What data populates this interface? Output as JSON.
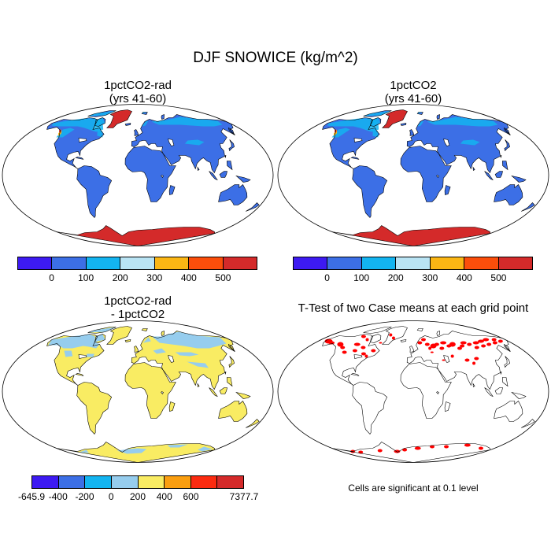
{
  "figure": {
    "title": "DJF SNOWICE (kg/m^2)",
    "note": "Cells are significant at 0.1 level"
  },
  "panels": [
    {
      "id": "1pctCO2-rad",
      "title": "1pctCO2-rad\n(yrs 41-60)",
      "fill": "absolute"
    },
    {
      "id": "1pctCO2",
      "title": "1pctCO2\n(yrs 41-60)",
      "fill": "absolute"
    },
    {
      "id": "difference",
      "title": "1pctCO2-rad\n- 1pctCO2",
      "fill": "difference"
    },
    {
      "id": "ttest",
      "title": "T-Test of two Case means at each grid point",
      "fill": "ttest"
    }
  ],
  "legends": {
    "absolute": {
      "colors": [
        "#3d1af2",
        "#3c6fe6",
        "#13b4f0",
        "#b9e4f4",
        "#fbb614",
        "#fb4e0b",
        "#d42a2a"
      ],
      "labels": [
        "0",
        "100",
        "200",
        "300",
        "400",
        "500"
      ]
    },
    "difference": {
      "colors": [
        "#3d1af2",
        "#3c6fe6",
        "#13b4f0",
        "#96cdee",
        "#f9ec63",
        "#fa9e10",
        "#fb2b10",
        "#d42a2a"
      ],
      "labels": [
        "-645.9",
        "-400",
        "-200",
        "0",
        "200",
        "400",
        "600",
        "7377.7"
      ]
    }
  },
  "map_colors": {
    "ocean": "#ffffff",
    "absolute_land": "#3c6fe6",
    "absolute_snow_light": "#13b4f0",
    "absolute_ice": "#d42a2a",
    "absolute_coast_mark": "#fbb614",
    "diff_land": "#f9ec63",
    "diff_negative": "#96cdee",
    "ttest_significant": "#ff0000",
    "coastline": "#000000"
  }
}
